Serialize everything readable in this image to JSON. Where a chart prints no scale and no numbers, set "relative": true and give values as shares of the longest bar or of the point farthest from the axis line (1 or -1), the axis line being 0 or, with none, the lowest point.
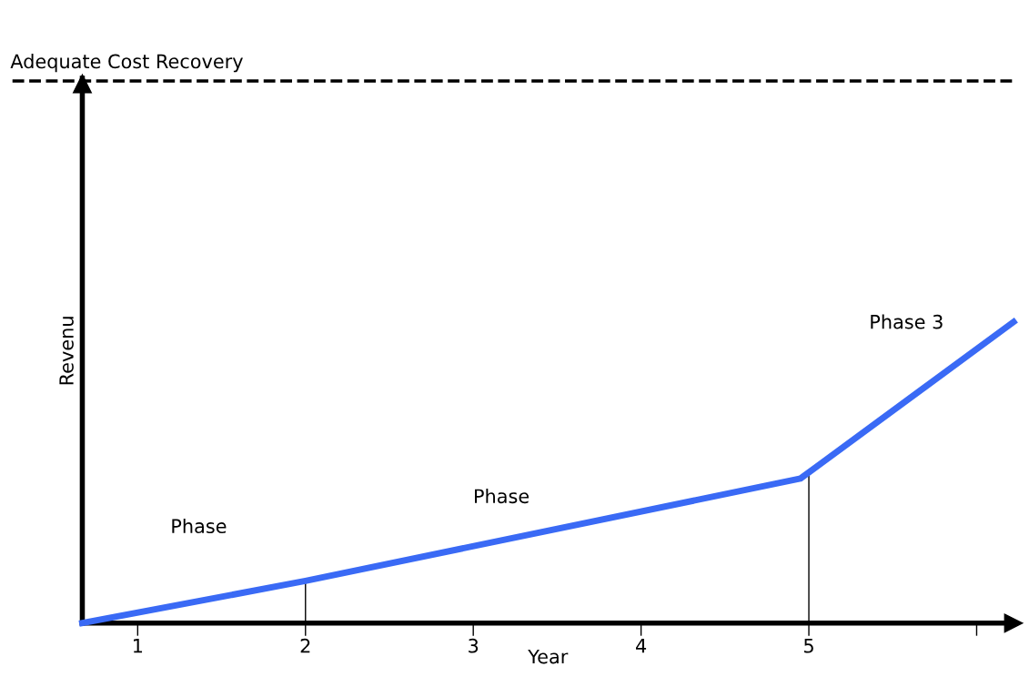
{
  "chart_data": {
    "type": "line",
    "relative": true,
    "xlabel": "Year",
    "ylabel": "Revenu",
    "xlim": [
      0.67,
      6.22
    ],
    "xticks": [
      1,
      2,
      3,
      4,
      5,
      {
        "value": 6,
        "label": null
      }
    ],
    "series": [
      {
        "color": "#3a6af5",
        "x": [
          0.67,
          2,
          4.95,
          6.22
        ],
        "values": [
          0,
          0.14,
          0.48,
          1
        ]
      }
    ],
    "ref_lines": [
      {
        "axis": "y",
        "value": 1.8,
        "label": "Adequate Cost Recovery",
        "color": "#000000",
        "line_style": "dashed"
      },
      {
        "axis": "x",
        "value": 2,
        "color": "#000000",
        "line_style": "solid"
      },
      {
        "axis": "x",
        "value": 5,
        "color": "#000000",
        "line_style": "solid"
      }
    ],
    "annotations": [
      "Phase",
      "Phase",
      "Phase 3"
    ],
    "grid": false,
    "marker": "none",
    "line_style": "solid"
  }
}
